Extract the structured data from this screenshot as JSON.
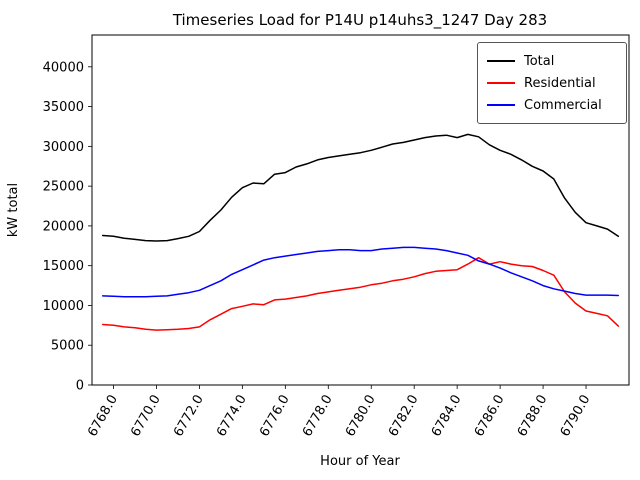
{
  "title": "Timeseries Load for P14U p14uhs3_1247  Day 283",
  "axes": {
    "xlabel": "Hour of Year",
    "ylabel": "kW total"
  },
  "legend": {
    "position": "upper right",
    "entries": [
      {
        "label": "Total",
        "color": "#000000"
      },
      {
        "label": "Residential",
        "color": "#ff0000"
      },
      {
        "label": "Commercial",
        "color": "#0000ff"
      }
    ]
  },
  "chart_data": {
    "type": "line",
    "title": "Timeseries Load for P14U p14uhs3_1247  Day 283",
    "xlabel": "Hour of Year",
    "ylabel": "kW total",
    "xlim": [
      6767.0,
      6792.0
    ],
    "ylim": [
      0,
      44000
    ],
    "grid": false,
    "legend_position": "upper right",
    "xticks": [
      6768.0,
      6770.0,
      6772.0,
      6774.0,
      6776.0,
      6778.0,
      6780.0,
      6782.0,
      6784.0,
      6786.0,
      6788.0,
      6790.0
    ],
    "xtick_labels": [
      "6768.0",
      "6770.0",
      "6772.0",
      "6774.0",
      "6776.0",
      "6778.0",
      "6780.0",
      "6782.0",
      "6784.0",
      "6786.0",
      "6788.0",
      "6790.0"
    ],
    "yticks": [
      0,
      5000,
      10000,
      15000,
      20000,
      25000,
      30000,
      35000,
      40000
    ],
    "ytick_labels": [
      "0",
      "5000",
      "10000",
      "15000",
      "20000",
      "25000",
      "30000",
      "35000",
      "40000"
    ],
    "x": [
      6767.5,
      6768.0,
      6768.5,
      6769.0,
      6769.5,
      6770.0,
      6770.5,
      6771.0,
      6771.5,
      6772.0,
      6772.5,
      6773.0,
      6773.5,
      6774.0,
      6774.5,
      6775.0,
      6775.5,
      6776.0,
      6776.5,
      6777.0,
      6777.5,
      6778.0,
      6778.5,
      6779.0,
      6779.5,
      6780.0,
      6780.5,
      6781.0,
      6781.5,
      6782.0,
      6782.5,
      6783.0,
      6783.5,
      6784.0,
      6784.5,
      6785.0,
      6785.5,
      6786.0,
      6786.5,
      6787.0,
      6787.5,
      6788.0,
      6788.5,
      6789.0,
      6789.5,
      6790.0,
      6790.5,
      6791.0,
      6791.5
    ],
    "series": [
      {
        "name": "Total",
        "color": "#000000",
        "values": [
          18800,
          18700,
          18450,
          18300,
          18150,
          18100,
          18150,
          18400,
          18700,
          19300,
          20700,
          22000,
          23600,
          24800,
          25400,
          25300,
          26500,
          26700,
          27400,
          27800,
          28300,
          28600,
          28800,
          29000,
          29200,
          29500,
          29900,
          30300,
          30500,
          30800,
          31100,
          31300,
          31400,
          31100,
          31500,
          31200,
          30200,
          29500,
          29000,
          28300,
          27500,
          26900,
          25900,
          23500,
          21700,
          20400,
          20000,
          19600,
          18700
        ]
      },
      {
        "name": "Residential",
        "color": "#ff0000",
        "values": [
          7600,
          7500,
          7300,
          7200,
          7000,
          6900,
          6950,
          7000,
          7100,
          7300,
          8200,
          8900,
          9600,
          9900,
          10200,
          10100,
          10700,
          10800,
          11000,
          11200,
          11500,
          11700,
          11900,
          12100,
          12300,
          12600,
          12800,
          13100,
          13300,
          13600,
          14000,
          14300,
          14400,
          14500,
          15200,
          16000,
          15200,
          15500,
          15200,
          15000,
          14900,
          14400,
          13800,
          11700,
          10300,
          9300,
          9000,
          8700,
          7400
        ]
      },
      {
        "name": "Commercial",
        "color": "#0000ff",
        "values": [
          11200,
          11150,
          11100,
          11100,
          11100,
          11150,
          11200,
          11400,
          11600,
          11900,
          12500,
          13100,
          13900,
          14500,
          15100,
          15700,
          16000,
          16200,
          16400,
          16600,
          16800,
          16900,
          17000,
          17000,
          16900,
          16900,
          17100,
          17200,
          17300,
          17300,
          17200,
          17100,
          16900,
          16600,
          16300,
          15600,
          15200,
          14700,
          14100,
          13600,
          13100,
          12500,
          12100,
          11800,
          11500,
          11300,
          11300,
          11300,
          11250
        ]
      }
    ]
  }
}
